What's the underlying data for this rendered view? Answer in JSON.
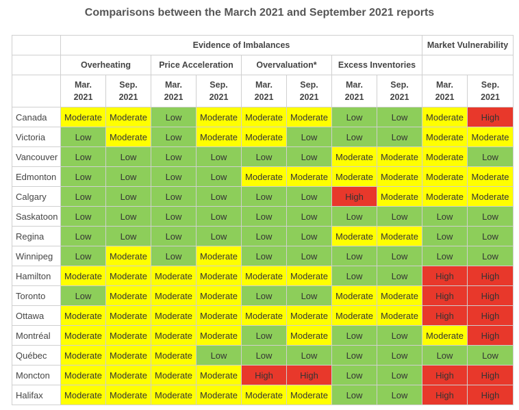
{
  "title": "Comparisons between the March 2021 and September 2021 reports",
  "headers": {
    "evidence": "Evidence of Imbalances",
    "market": "Market Vulnerability",
    "overheating": "Overheating",
    "price_acceleration": "Price Acceleration",
    "overvaluation": "Overvaluation*",
    "excess_inventories": "Excess Inventories",
    "mar_line1": "Mar.",
    "sep_line1": "Sep.",
    "year": "2021"
  },
  "colors": {
    "Low": "#8dce5a",
    "Moderate": "#ffff00",
    "High": "#e8382b"
  },
  "rows": [
    {
      "city": "Canada",
      "values": [
        "Moderate",
        "Moderate",
        "Low",
        "Moderate",
        "Moderate",
        "Moderate",
        "Low",
        "Low",
        "Moderate",
        "High"
      ]
    },
    {
      "city": "Victoria",
      "values": [
        "Low",
        "Moderate",
        "Low",
        "Moderate",
        "Moderate",
        "Low",
        "Low",
        "Low",
        "Moderate",
        "Moderate"
      ]
    },
    {
      "city": "Vancouver",
      "values": [
        "Low",
        "Low",
        "Low",
        "Low",
        "Low",
        "Low",
        "Moderate",
        "Moderate",
        "Moderate",
        "Low"
      ]
    },
    {
      "city": "Edmonton",
      "values": [
        "Low",
        "Low",
        "Low",
        "Low",
        "Moderate",
        "Moderate",
        "Moderate",
        "Moderate",
        "Moderate",
        "Moderate"
      ]
    },
    {
      "city": "Calgary",
      "values": [
        "Low",
        "Low",
        "Low",
        "Low",
        "Low",
        "Low",
        "High",
        "Moderate",
        "Moderate",
        "Moderate"
      ]
    },
    {
      "city": "Saskatoon",
      "values": [
        "Low",
        "Low",
        "Low",
        "Low",
        "Low",
        "Low",
        "Low",
        "Low",
        "Low",
        "Low"
      ]
    },
    {
      "city": "Regina",
      "values": [
        "Low",
        "Low",
        "Low",
        "Low",
        "Low",
        "Low",
        "Moderate",
        "Moderate",
        "Low",
        "Low"
      ]
    },
    {
      "city": "Winnipeg",
      "values": [
        "Low",
        "Moderate",
        "Low",
        "Moderate",
        "Low",
        "Low",
        "Low",
        "Low",
        "Low",
        "Low"
      ]
    },
    {
      "city": "Hamilton",
      "values": [
        "Moderate",
        "Moderate",
        "Moderate",
        "Moderate",
        "Moderate",
        "Moderate",
        "Low",
        "Low",
        "High",
        "High"
      ]
    },
    {
      "city": "Toronto",
      "values": [
        "Low",
        "Moderate",
        "Moderate",
        "Moderate",
        "Low",
        "Low",
        "Moderate",
        "Moderate",
        "High",
        "High"
      ]
    },
    {
      "city": "Ottawa",
      "values": [
        "Moderate",
        "Moderate",
        "Moderate",
        "Moderate",
        "Moderate",
        "Moderate",
        "Moderate",
        "Moderate",
        "High",
        "High"
      ]
    },
    {
      "city": "Montréal",
      "values": [
        "Moderate",
        "Moderate",
        "Moderate",
        "Moderate",
        "Low",
        "Moderate",
        "Low",
        "Low",
        "Moderate",
        "High"
      ]
    },
    {
      "city": "Québec",
      "values": [
        "Moderate",
        "Moderate",
        "Moderate",
        "Low",
        "Low",
        "Low",
        "Low",
        "Low",
        "Low",
        "Low"
      ]
    },
    {
      "city": "Moncton",
      "values": [
        "Moderate",
        "Moderate",
        "Moderate",
        "Moderate",
        "High",
        "High",
        "Low",
        "Low",
        "High",
        "High"
      ]
    },
    {
      "city": "Halifax",
      "values": [
        "Moderate",
        "Moderate",
        "Moderate",
        "Moderate",
        "Moderate",
        "Moderate",
        "Low",
        "Low",
        "High",
        "High"
      ]
    }
  ]
}
